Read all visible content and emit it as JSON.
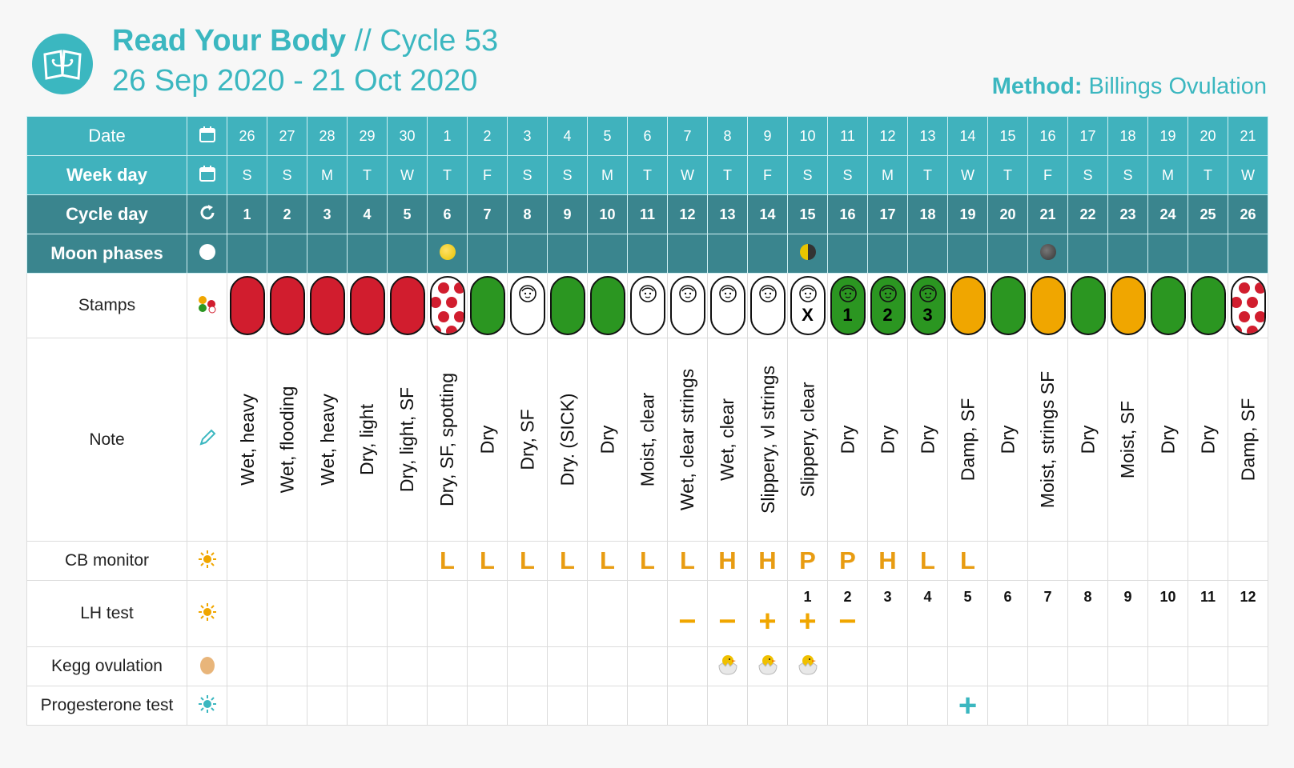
{
  "header": {
    "app_name": "Read Your Body",
    "separator": " // ",
    "cycle_label": "Cycle 53",
    "date_range": "26 Sep 2020 - 21 Oct 2020",
    "method_label": "Method:",
    "method_value": "Billings Ovulation"
  },
  "colors": {
    "accent": "#3bb7c0",
    "header_row": "#40b2bd",
    "dark_row": "#3a858e",
    "red": "#d11d2e",
    "green": "#2b9621",
    "yellow": "#f0a600"
  },
  "rows": {
    "date": "Date",
    "week_day": "Week day",
    "cycle_day": "Cycle day",
    "moon_phases": "Moon phases",
    "stamps": "Stamps",
    "note": "Note",
    "cb_monitor": "CB monitor",
    "lh_test": "LH test",
    "kegg": "Kegg ovulation",
    "progesterone": "Progesterone test"
  },
  "days": [
    {
      "date": "26",
      "wd": "S",
      "cd": "1",
      "moon": "",
      "stamp": "red",
      "num": "",
      "note": "Wet, heavy",
      "cb": "",
      "lh_day": "",
      "lh": "",
      "kegg": "",
      "prog": ""
    },
    {
      "date": "27",
      "wd": "S",
      "cd": "2",
      "moon": "",
      "stamp": "red",
      "num": "",
      "note": "Wet, flooding",
      "cb": "",
      "lh_day": "",
      "lh": "",
      "kegg": "",
      "prog": ""
    },
    {
      "date": "28",
      "wd": "M",
      "cd": "3",
      "moon": "",
      "stamp": "red",
      "num": "",
      "note": "Wet, heavy",
      "cb": "",
      "lh_day": "",
      "lh": "",
      "kegg": "",
      "prog": ""
    },
    {
      "date": "29",
      "wd": "T",
      "cd": "4",
      "moon": "",
      "stamp": "red",
      "num": "",
      "note": "Dry, light",
      "cb": "",
      "lh_day": "",
      "lh": "",
      "kegg": "",
      "prog": ""
    },
    {
      "date": "30",
      "wd": "W",
      "cd": "5",
      "moon": "",
      "stamp": "red",
      "num": "",
      "note": "Dry, light, SF",
      "cb": "",
      "lh_day": "",
      "lh": "",
      "kegg": "",
      "prog": ""
    },
    {
      "date": "1",
      "wd": "T",
      "cd": "6",
      "moon": "full",
      "stamp": "spots",
      "num": "",
      "note": "Dry, SF, spotting",
      "cb": "L",
      "lh_day": "",
      "lh": "",
      "kegg": "",
      "prog": ""
    },
    {
      "date": "2",
      "wd": "F",
      "cd": "7",
      "moon": "",
      "stamp": "green",
      "num": "",
      "note": "Dry",
      "cb": "L",
      "lh_day": "",
      "lh": "",
      "kegg": "",
      "prog": ""
    },
    {
      "date": "3",
      "wd": "S",
      "cd": "8",
      "moon": "",
      "stamp": "baby",
      "num": "",
      "note": "Dry, SF",
      "cb": "L",
      "lh_day": "",
      "lh": "",
      "kegg": "",
      "prog": ""
    },
    {
      "date": "4",
      "wd": "S",
      "cd": "9",
      "moon": "",
      "stamp": "green",
      "num": "",
      "note": "Dry. (SICK)",
      "cb": "L",
      "lh_day": "",
      "lh": "",
      "kegg": "",
      "prog": ""
    },
    {
      "date": "5",
      "wd": "M",
      "cd": "10",
      "moon": "",
      "stamp": "green",
      "num": "",
      "note": "Dry",
      "cb": "L",
      "lh_day": "",
      "lh": "",
      "kegg": "",
      "prog": ""
    },
    {
      "date": "6",
      "wd": "T",
      "cd": "11",
      "moon": "",
      "stamp": "baby",
      "num": "",
      "note": "Moist, clear",
      "cb": "L",
      "lh_day": "",
      "lh": "",
      "kegg": "",
      "prog": ""
    },
    {
      "date": "7",
      "wd": "W",
      "cd": "12",
      "moon": "",
      "stamp": "baby",
      "num": "",
      "note": "Wet, clear strings",
      "cb": "L",
      "lh_day": "",
      "lh": "−",
      "kegg": "",
      "prog": ""
    },
    {
      "date": "8",
      "wd": "T",
      "cd": "13",
      "moon": "",
      "stamp": "baby",
      "num": "",
      "note": "Wet, clear",
      "cb": "H",
      "lh_day": "",
      "lh": "−",
      "kegg": "chick",
      "prog": ""
    },
    {
      "date": "9",
      "wd": "F",
      "cd": "14",
      "moon": "",
      "stamp": "baby",
      "num": "",
      "note": "Slippery, vl strings",
      "cb": "H",
      "lh_day": "",
      "lh": "+",
      "kegg": "chick",
      "prog": ""
    },
    {
      "date": "10",
      "wd": "S",
      "cd": "15",
      "moon": "last",
      "stamp": "baby",
      "num": "X",
      "note": "Slippery, clear",
      "cb": "P",
      "lh_day": "1",
      "lh": "+",
      "kegg": "chick",
      "prog": ""
    },
    {
      "date": "11",
      "wd": "S",
      "cd": "16",
      "moon": "",
      "stamp": "greenbaby",
      "num": "1",
      "note": "Dry",
      "cb": "P",
      "lh_day": "2",
      "lh": "−",
      "kegg": "",
      "prog": ""
    },
    {
      "date": "12",
      "wd": "M",
      "cd": "17",
      "moon": "",
      "stamp": "greenbaby",
      "num": "2",
      "note": "Dry",
      "cb": "H",
      "lh_day": "3",
      "lh": "",
      "kegg": "",
      "prog": ""
    },
    {
      "date": "13",
      "wd": "T",
      "cd": "18",
      "moon": "",
      "stamp": "greenbaby",
      "num": "3",
      "note": "Dry",
      "cb": "L",
      "lh_day": "4",
      "lh": "",
      "kegg": "",
      "prog": ""
    },
    {
      "date": "14",
      "wd": "W",
      "cd": "19",
      "moon": "",
      "stamp": "yellow",
      "num": "",
      "note": "Damp, SF",
      "cb": "L",
      "lh_day": "5",
      "lh": "",
      "kegg": "",
      "prog": "+"
    },
    {
      "date": "15",
      "wd": "T",
      "cd": "20",
      "moon": "",
      "stamp": "green",
      "num": "",
      "note": "Dry",
      "cb": "",
      "lh_day": "6",
      "lh": "",
      "kegg": "",
      "prog": ""
    },
    {
      "date": "16",
      "wd": "F",
      "cd": "21",
      "moon": "new",
      "stamp": "yellow",
      "num": "",
      "note": "Moist, strings SF",
      "cb": "",
      "lh_day": "7",
      "lh": "",
      "kegg": "",
      "prog": ""
    },
    {
      "date": "17",
      "wd": "S",
      "cd": "22",
      "moon": "",
      "stamp": "green",
      "num": "",
      "note": "Dry",
      "cb": "",
      "lh_day": "8",
      "lh": "",
      "kegg": "",
      "prog": ""
    },
    {
      "date": "18",
      "wd": "S",
      "cd": "23",
      "moon": "",
      "stamp": "yellow",
      "num": "",
      "note": "Moist, SF",
      "cb": "",
      "lh_day": "9",
      "lh": "",
      "kegg": "",
      "prog": ""
    },
    {
      "date": "19",
      "wd": "M",
      "cd": "24",
      "moon": "",
      "stamp": "green",
      "num": "",
      "note": "Dry",
      "cb": "",
      "lh_day": "10",
      "lh": "",
      "kegg": "",
      "prog": ""
    },
    {
      "date": "20",
      "wd": "T",
      "cd": "25",
      "moon": "",
      "stamp": "green",
      "num": "",
      "note": "Dry",
      "cb": "",
      "lh_day": "11",
      "lh": "",
      "kegg": "",
      "prog": ""
    },
    {
      "date": "21",
      "wd": "W",
      "cd": "26",
      "moon": "",
      "stamp": "spots",
      "num": "",
      "note": "Damp, SF",
      "cb": "",
      "lh_day": "12",
      "lh": "",
      "kegg": "",
      "prog": ""
    }
  ]
}
